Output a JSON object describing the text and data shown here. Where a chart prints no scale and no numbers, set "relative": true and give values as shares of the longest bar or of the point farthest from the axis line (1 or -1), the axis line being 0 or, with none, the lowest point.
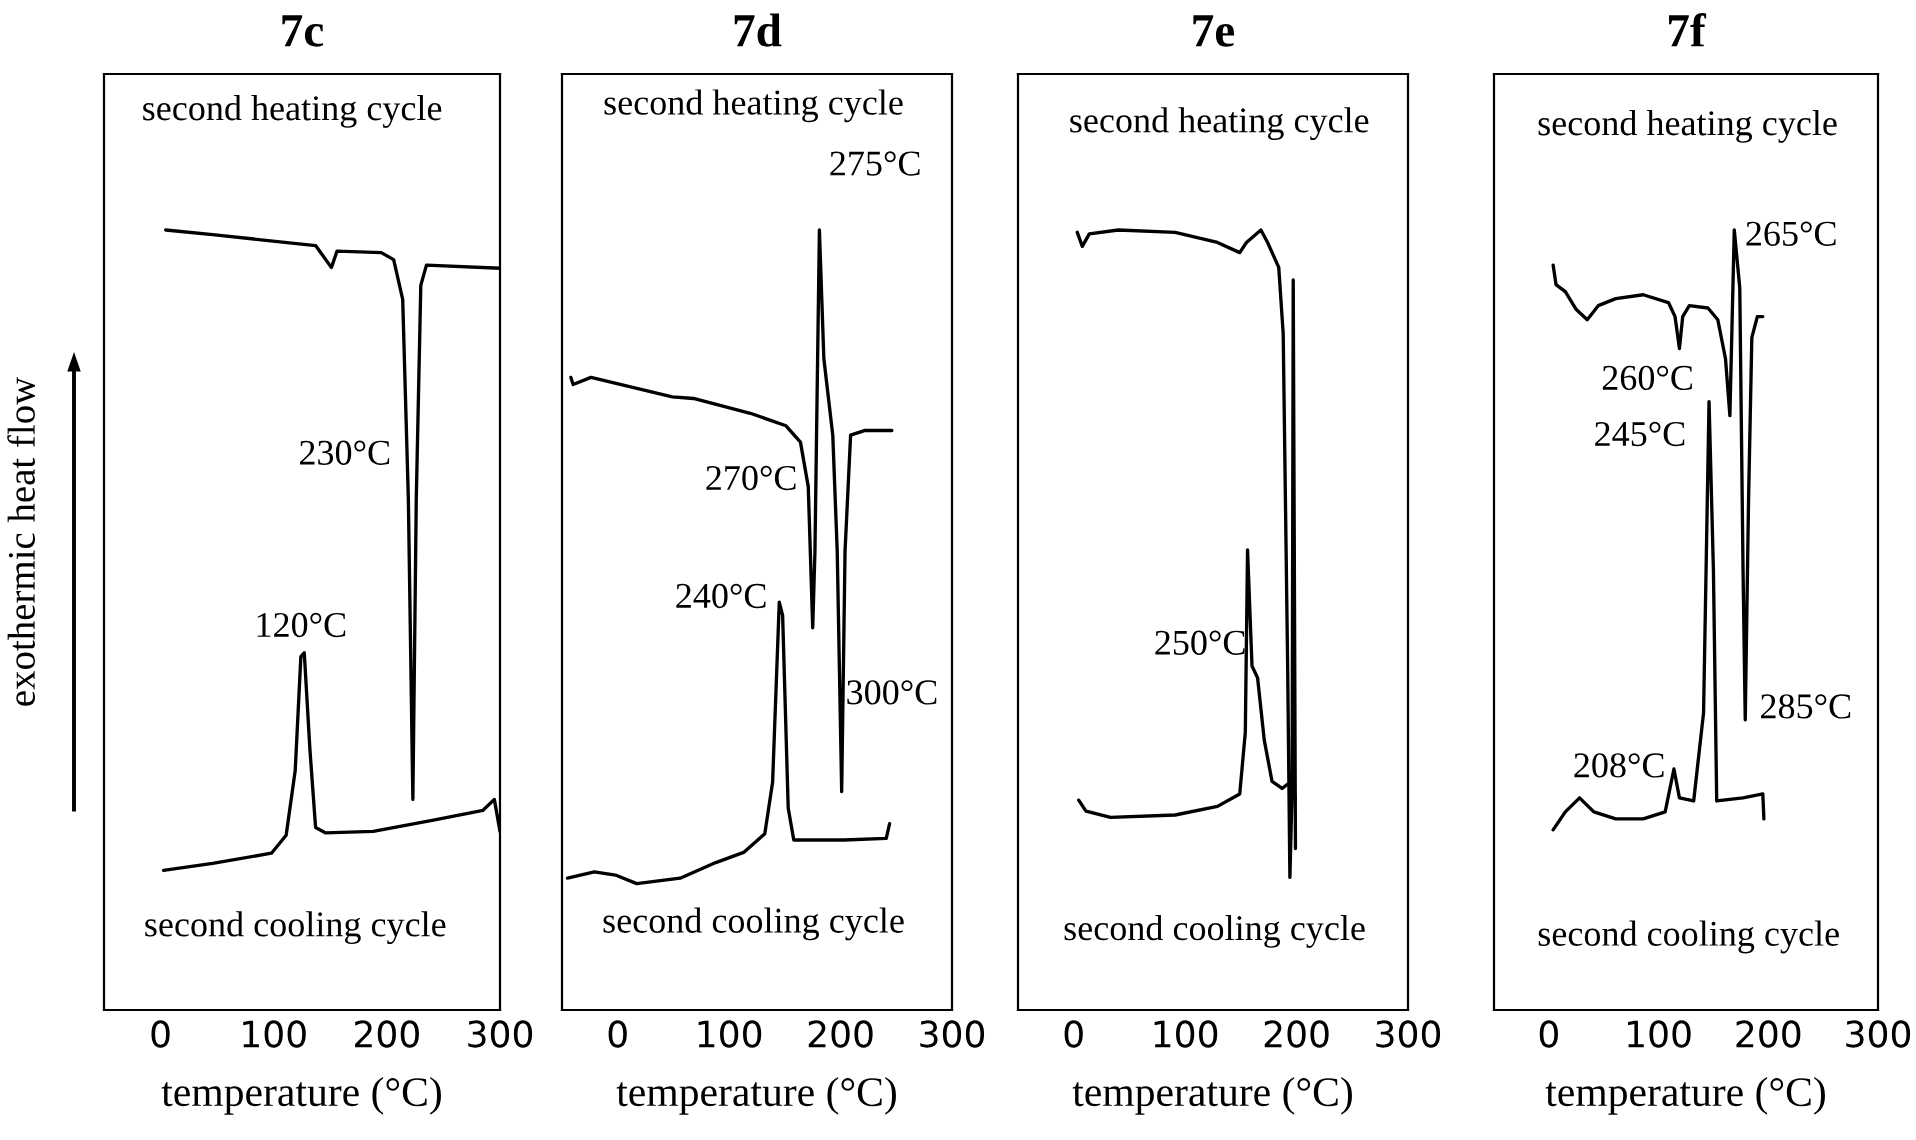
{
  "chart_data": [
    {
      "type": "line",
      "title": "7c",
      "xlabel": "temperature (°C)",
      "ylabel": "exothermic heat flow",
      "xlim": [
        -50,
        300
      ],
      "xticks": [
        0,
        100,
        200,
        300
      ],
      "relative": true,
      "tick_labels": "x",
      "grid": false,
      "legend": false,
      "series": [
        {
          "color": "#000000",
          "x": [
            4.5,
            46,
            137,
            146,
            151,
            156,
            195,
            206,
            214,
            219,
            223,
            226,
            230,
            235,
            300
          ],
          "values": [
            1.0,
            0.994,
            0.98,
            0.962,
            0.952,
            0.973,
            0.971,
            0.962,
            0.911,
            0.655,
            0.27,
            0.655,
            0.929,
            0.955,
            0.951
          ]
        },
        {
          "color": "#000000",
          "x": [
            2.6,
            46,
            98,
            111,
            119,
            124,
            127,
            132,
            137,
            146,
            188,
            240,
            285,
            295,
            300
          ],
          "values": [
            0.179,
            0.188,
            0.201,
            0.224,
            0.307,
            0.453,
            0.458,
            0.334,
            0.234,
            0.227,
            0.229,
            0.243,
            0.256,
            0.27,
            0.229
          ]
        }
      ],
      "annotations": [
        "second heating cycle",
        "230°C",
        "120°C",
        "second cooling cycle"
      ]
    },
    {
      "type": "line",
      "title": "7d",
      "xlabel": "temperature (°C)",
      "xlim": [
        -50,
        300
      ],
      "xticks": [
        0,
        100,
        200,
        300
      ],
      "relative": true,
      "tick_labels": "x",
      "grid": false,
      "legend": false,
      "series": [
        {
          "color": "#000000",
          "x": [
            -42,
            -40,
            -24,
            49,
            68,
            119,
            151,
            164,
            171,
            175,
            177,
            181,
            185,
            193,
            197,
            201,
            204,
            209,
            222,
            246
          ],
          "values": [
            0.811,
            0.802,
            0.811,
            0.786,
            0.784,
            0.765,
            0.749,
            0.728,
            0.671,
            0.49,
            0.588,
            1.0,
            0.835,
            0.737,
            0.588,
            0.28,
            0.588,
            0.737,
            0.743,
            0.743
          ]
        },
        {
          "color": "#000000",
          "x": [
            -45,
            -21,
            -2,
            17,
            56,
            88,
            113,
            132,
            139,
            145,
            148,
            153,
            158,
            203,
            241,
            244
          ],
          "values": [
            0.169,
            0.177,
            0.173,
            0.162,
            0.169,
            0.189,
            0.202,
            0.226,
            0.292,
            0.523,
            0.506,
            0.259,
            0.218,
            0.218,
            0.22,
            0.239
          ]
        }
      ],
      "annotations": [
        "second heating cycle",
        "275°C",
        "270°C",
        "240°C",
        "300°C",
        "second cooling cycle"
      ]
    },
    {
      "type": "line",
      "title": "7e",
      "xlabel": "temperature (°C)",
      "xlim": [
        -50,
        300
      ],
      "xticks": [
        0,
        100,
        200,
        300
      ],
      "relative": true,
      "tick_labels": "x",
      "grid": false,
      "legend": false,
      "series": [
        {
          "color": "#000000",
          "x": [
            3.2,
            7.7,
            14,
            40,
            91,
            129,
            149,
            155,
            168,
            174,
            184,
            188,
            190,
            192,
            194,
            196,
            197,
            199
          ],
          "values": [
            0.997,
            0.979,
            0.995,
            1.0,
            0.997,
            0.984,
            0.971,
            0.984,
            1.0,
            0.984,
            0.952,
            0.867,
            0.654,
            0.441,
            0.17,
            0.282,
            0.936,
            0.207
          ]
        },
        {
          "color": "#000000",
          "x": [
            4.5,
            11,
            33,
            91,
            129,
            149,
            154,
            156,
            160,
            165,
            171,
            178,
            187,
            195,
            199
          ],
          "values": [
            0.269,
            0.255,
            0.247,
            0.25,
            0.261,
            0.277,
            0.356,
            0.59,
            0.441,
            0.426,
            0.346,
            0.293,
            0.284,
            0.293,
            0.271
          ]
        }
      ],
      "annotations": [
        "second heating cycle",
        "250°C",
        "second cooling cycle"
      ]
    },
    {
      "type": "line",
      "title": "7f",
      "xlabel": "temperature (°C)",
      "xlim": [
        -50,
        300
      ],
      "xticks": [
        0,
        100,
        200,
        300
      ],
      "relative": true,
      "tick_labels": "x",
      "grid": false,
      "legend": false,
      "series": [
        {
          "color": "#000000",
          "x": [
            3.9,
            6.5,
            15,
            25,
            35,
            45,
            61,
            86,
            109,
            115,
            119,
            122,
            128,
            145,
            154,
            161,
            165,
            169,
            174,
            177,
            179,
            182,
            185,
            190,
            195
          ],
          "values": [
            0.955,
            0.93,
            0.921,
            0.898,
            0.885,
            0.903,
            0.912,
            0.917,
            0.907,
            0.889,
            0.848,
            0.889,
            0.903,
            0.9,
            0.885,
            0.835,
            0.762,
            1.0,
            0.926,
            0.563,
            0.372,
            0.653,
            0.862,
            0.889,
            0.889
          ]
        },
        {
          "color": "#000000",
          "x": [
            3.9,
            15,
            28,
            41,
            61,
            86,
            106,
            114,
            119,
            132,
            141,
            146,
            150,
            153,
            177,
            195,
            196
          ],
          "values": [
            0.231,
            0.254,
            0.272,
            0.254,
            0.245,
            0.245,
            0.254,
            0.309,
            0.272,
            0.268,
            0.381,
            0.78,
            0.563,
            0.268,
            0.272,
            0.277,
            0.245
          ]
        }
      ],
      "annotations": [
        "second heating cycle",
        "265°C",
        "260°C",
        "245°C",
        "285°C",
        "208°C",
        "second cooling cycle"
      ]
    }
  ]
}
